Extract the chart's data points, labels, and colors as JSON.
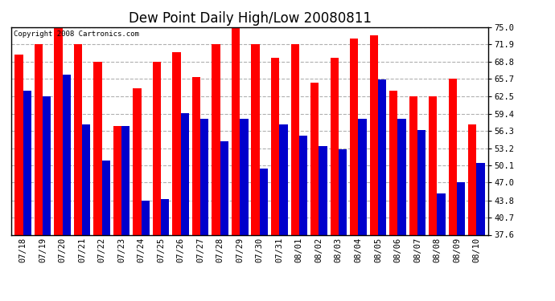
{
  "title": "Dew Point Daily High/Low 20080811",
  "copyright": "Copyright 2008 Cartronics.com",
  "dates": [
    "07/18",
    "07/19",
    "07/20",
    "07/21",
    "07/22",
    "07/23",
    "07/24",
    "07/25",
    "07/26",
    "07/27",
    "07/28",
    "07/29",
    "07/30",
    "07/31",
    "08/01",
    "08/02",
    "08/03",
    "08/04",
    "08/05",
    "08/06",
    "08/07",
    "08/08",
    "08/09",
    "08/10"
  ],
  "highs": [
    70.0,
    71.9,
    75.0,
    71.9,
    68.8,
    57.2,
    64.0,
    68.8,
    70.5,
    66.0,
    72.0,
    75.0,
    72.0,
    69.5,
    71.9,
    65.0,
    69.5,
    73.0,
    73.5,
    63.5,
    62.5,
    62.5,
    65.7,
    57.5
  ],
  "lows": [
    63.5,
    62.5,
    66.5,
    57.5,
    51.0,
    57.2,
    43.8,
    44.0,
    59.5,
    58.5,
    54.5,
    58.5,
    49.5,
    57.5,
    55.5,
    53.5,
    53.0,
    58.5,
    65.5,
    58.5,
    56.5,
    45.0,
    47.0,
    50.5
  ],
  "high_color": "#ff0000",
  "low_color": "#0000cc",
  "background_color": "#ffffff",
  "grid_color": "#b0b0b0",
  "ylim_min": 37.6,
  "ylim_max": 75.0,
  "yticks": [
    37.6,
    40.7,
    43.8,
    47.0,
    50.1,
    53.2,
    56.3,
    59.4,
    62.5,
    65.7,
    68.8,
    71.9,
    75.0
  ],
  "bar_width": 0.42,
  "title_fontsize": 12,
  "tick_fontsize": 7.5
}
